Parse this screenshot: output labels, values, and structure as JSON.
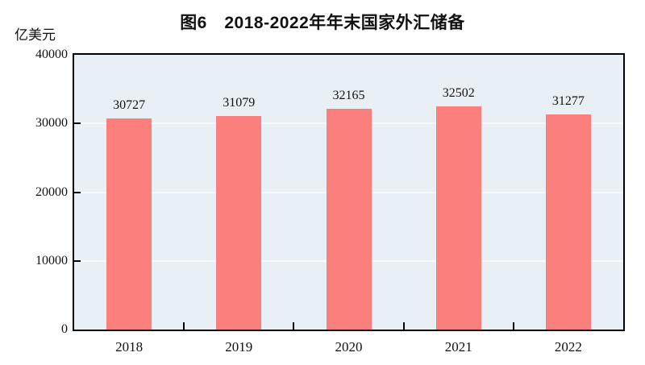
{
  "chart": {
    "title": "图6　2018-2022年年末国家外汇储备",
    "unit_label": "亿美元"
  },
  "chart_data": {
    "type": "bar",
    "title": "图6　2018-2022年年末国家外汇储备",
    "unit": "亿美元",
    "categories": [
      "2018",
      "2019",
      "2020",
      "2021",
      "2022"
    ],
    "values": [
      30727,
      31079,
      32165,
      32502,
      31277
    ],
    "data_labels": [
      30727,
      31079,
      32165,
      32502,
      31277
    ],
    "xlabel": "",
    "ylabel": "亿美元",
    "ylim": [
      0,
      40000
    ],
    "yticks": [
      0,
      10000,
      20000,
      30000,
      40000
    ],
    "grid": true,
    "legend_position": "none",
    "bar_color": "#fa7f7d",
    "plot_background": "#e9f0f5",
    "grid_color": "#f8fbfd",
    "axis_color": "#000000"
  }
}
